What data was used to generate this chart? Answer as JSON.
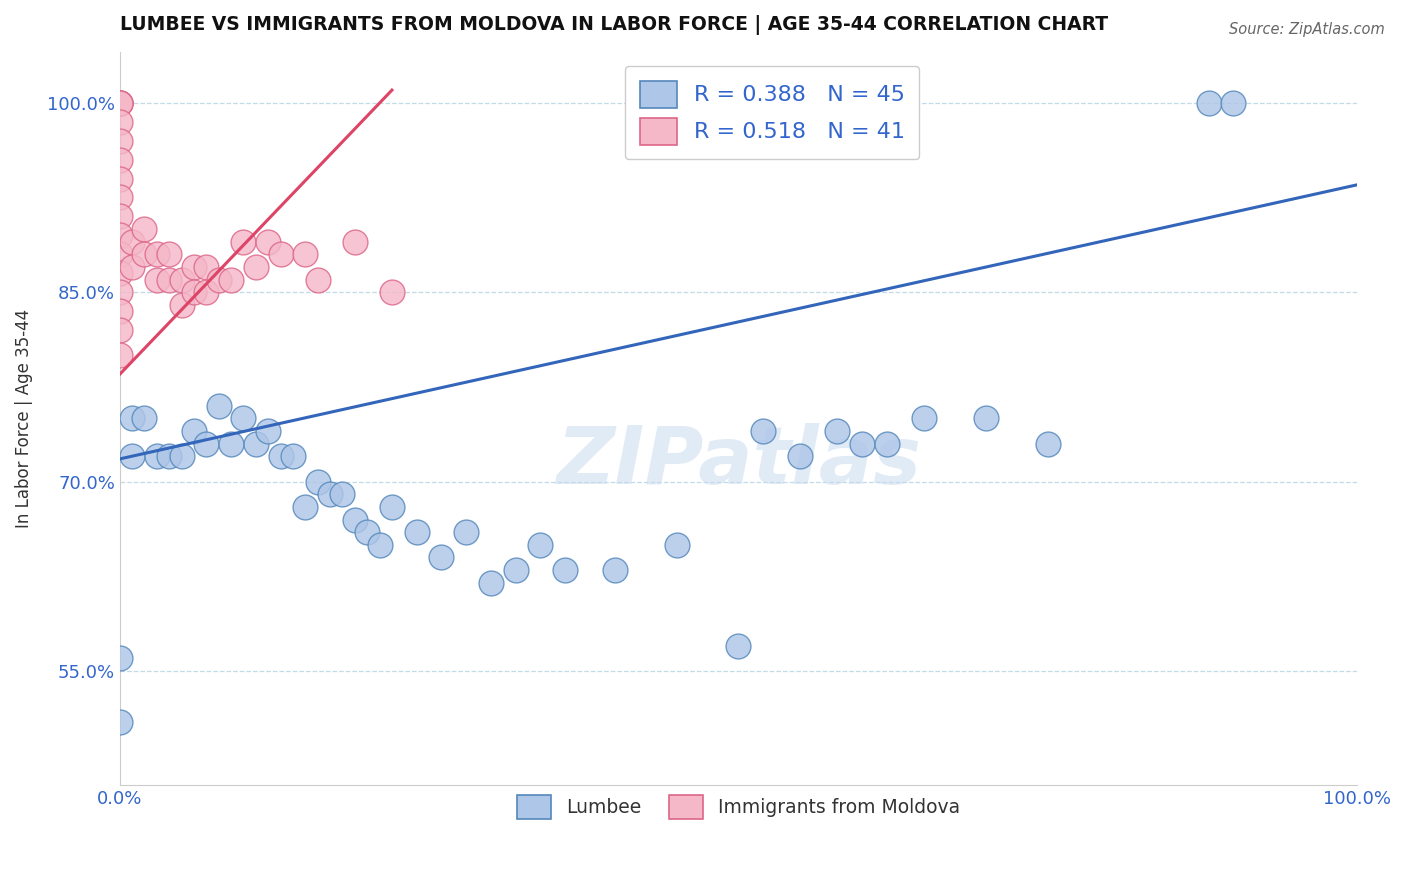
{
  "title": "LUMBEE VS IMMIGRANTS FROM MOLDOVA IN LABOR FORCE | AGE 35-44 CORRELATION CHART",
  "source": "Source: ZipAtlas.com",
  "ylabel": "In Labor Force | Age 35-44",
  "watermark": "ZIPatlas",
  "lumbee_R": 0.388,
  "lumbee_N": 45,
  "moldova_R": 0.518,
  "moldova_N": 41,
  "xlim": [
    0.0,
    1.0
  ],
  "ylim": [
    0.46,
    1.04
  ],
  "xticks": [
    0.0,
    0.25,
    0.5,
    0.75,
    1.0
  ],
  "xticklabels": [
    "0.0%",
    "",
    "",
    "",
    "100.0%"
  ],
  "ytick_positions": [
    0.55,
    0.7,
    0.85,
    1.0
  ],
  "ytick_labels": [
    "55.0%",
    "70.0%",
    "85.0%",
    "100.0%"
  ],
  "lumbee_color": "#aec6e8",
  "lumbee_edge": "#5588bb",
  "moldova_color": "#f4b8c8",
  "moldova_edge": "#dd6688",
  "line_lumbee_color": "#3366bb",
  "line_moldova_color": "#dd4466",
  "lumbee_x": [
    0.0,
    0.0,
    0.01,
    0.01,
    0.02,
    0.03,
    0.04,
    0.05,
    0.06,
    0.07,
    0.08,
    0.09,
    0.1,
    0.11,
    0.12,
    0.13,
    0.14,
    0.15,
    0.16,
    0.17,
    0.18,
    0.19,
    0.2,
    0.21,
    0.22,
    0.24,
    0.26,
    0.28,
    0.3,
    0.32,
    0.34,
    0.36,
    0.4,
    0.45,
    0.5,
    0.52,
    0.55,
    0.58,
    0.6,
    0.62,
    0.65,
    0.7,
    0.75,
    0.88,
    0.9
  ],
  "lumbee_y": [
    0.51,
    0.56,
    0.72,
    0.75,
    0.75,
    0.72,
    0.72,
    0.72,
    0.74,
    0.73,
    0.76,
    0.73,
    0.75,
    0.73,
    0.74,
    0.72,
    0.72,
    0.68,
    0.7,
    0.69,
    0.69,
    0.67,
    0.66,
    0.65,
    0.68,
    0.66,
    0.64,
    0.66,
    0.62,
    0.63,
    0.65,
    0.63,
    0.63,
    0.65,
    0.57,
    0.74,
    0.72,
    0.74,
    0.73,
    0.73,
    0.75,
    0.75,
    0.73,
    1.0,
    1.0
  ],
  "moldova_x": [
    0.0,
    0.0,
    0.0,
    0.0,
    0.0,
    0.0,
    0.0,
    0.0,
    0.0,
    0.0,
    0.0,
    0.0,
    0.0,
    0.0,
    0.0,
    0.0,
    0.0,
    0.01,
    0.01,
    0.02,
    0.02,
    0.03,
    0.03,
    0.04,
    0.04,
    0.05,
    0.05,
    0.06,
    0.06,
    0.07,
    0.07,
    0.08,
    0.09,
    0.1,
    0.11,
    0.12,
    0.13,
    0.15,
    0.16,
    0.19,
    0.22
  ],
  "moldova_y": [
    1.0,
    1.0,
    1.0,
    1.0,
    0.985,
    0.97,
    0.955,
    0.94,
    0.925,
    0.91,
    0.895,
    0.88,
    0.865,
    0.85,
    0.835,
    0.82,
    0.8,
    0.89,
    0.87,
    0.9,
    0.88,
    0.88,
    0.86,
    0.88,
    0.86,
    0.86,
    0.84,
    0.87,
    0.85,
    0.87,
    0.85,
    0.86,
    0.86,
    0.89,
    0.87,
    0.89,
    0.88,
    0.88,
    0.86,
    0.89,
    0.85
  ],
  "blue_line_x0": 0.0,
  "blue_line_y0": 0.718,
  "blue_line_x1": 1.0,
  "blue_line_y1": 0.935,
  "pink_line_x0": 0.0,
  "pink_line_y0": 0.785,
  "pink_line_x1": 0.22,
  "pink_line_y1": 1.01
}
